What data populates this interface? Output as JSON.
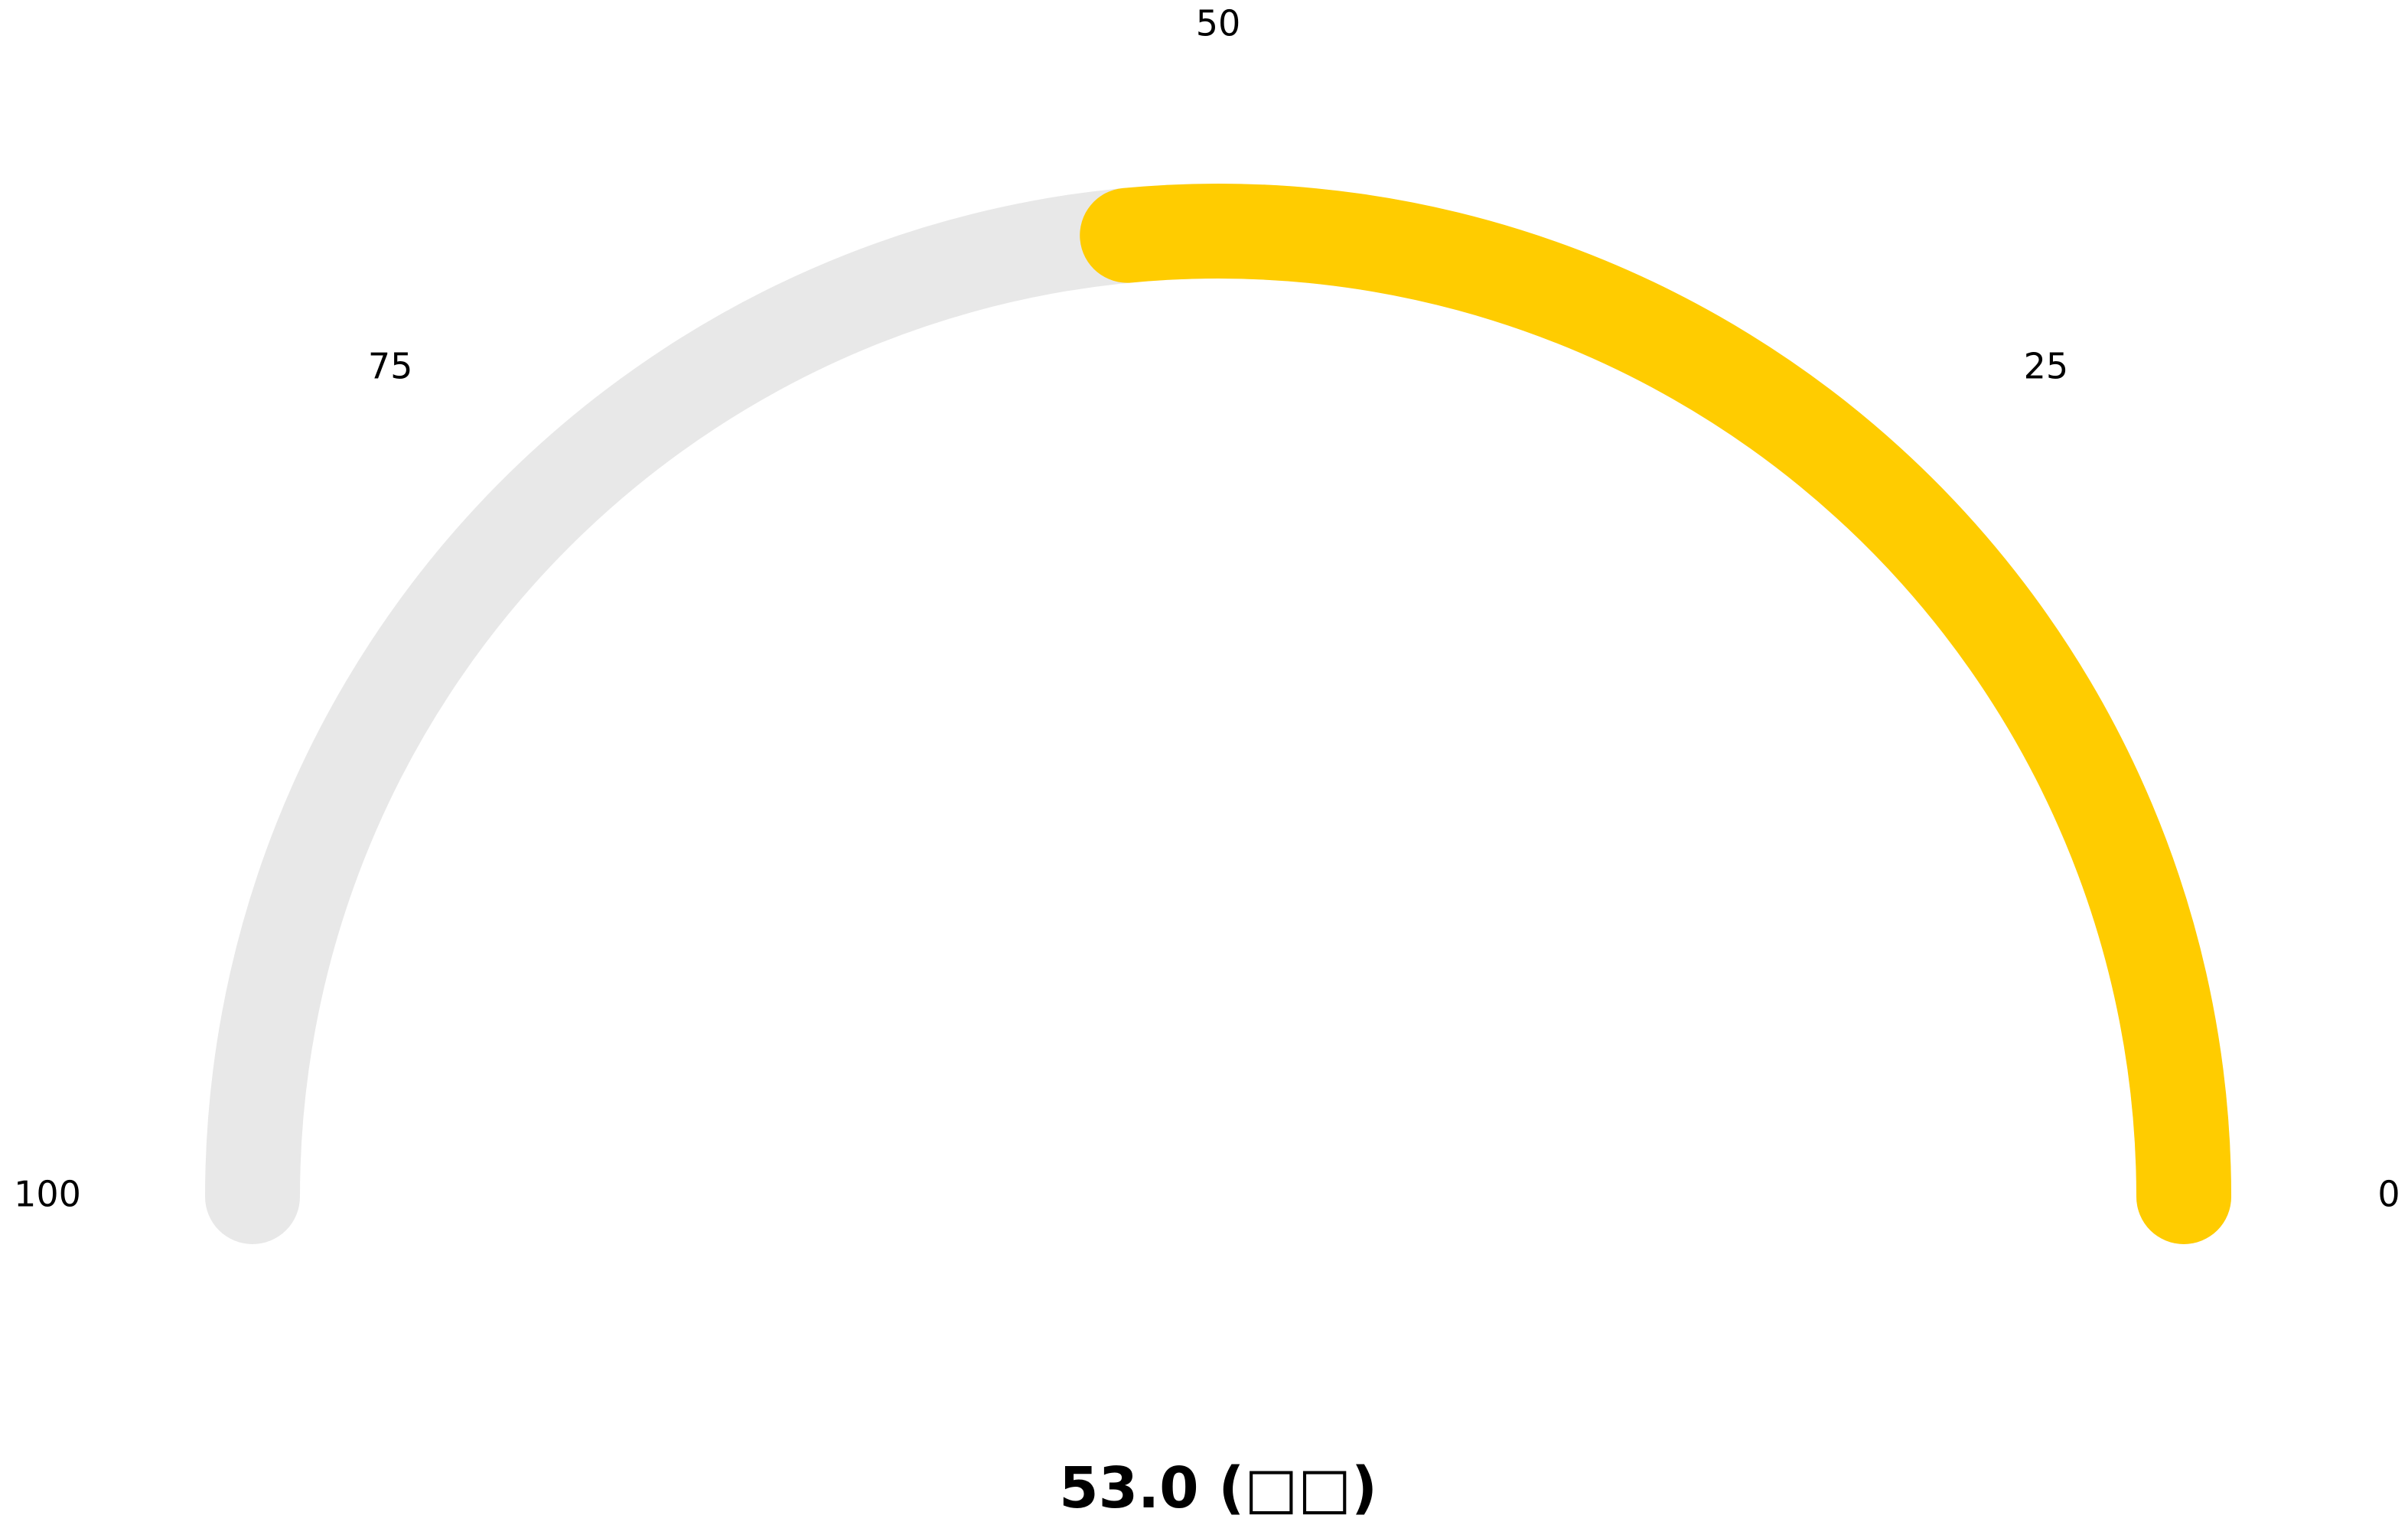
{
  "chart_data": {
    "type": "gauge",
    "value": 53.0,
    "min": 0,
    "max": 100,
    "direction": "right-to-left",
    "ticks": [
      {
        "value": 0,
        "label": "0"
      },
      {
        "value": 25,
        "label": "25"
      },
      {
        "value": 50,
        "label": "50"
      },
      {
        "value": 75,
        "label": "75"
      },
      {
        "value": 100,
        "label": "100"
      }
    ],
    "value_label": "53.0 (□□)",
    "colors": {
      "fill": "#FFCC00",
      "track": "#E8E8E8",
      "text": "#000000"
    }
  }
}
